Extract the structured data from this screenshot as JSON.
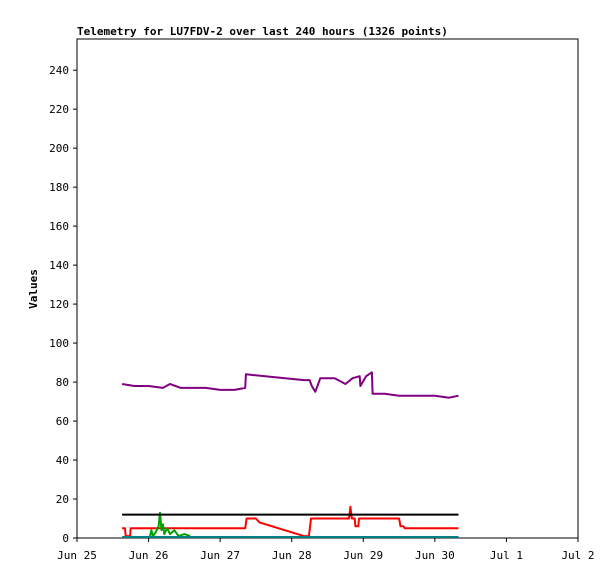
{
  "chart_data": {
    "type": "line",
    "title": "Telemetry for LU7FDV-2 over last 240 hours (1326 points)",
    "xlabel": "",
    "ylabel": "Values",
    "x_ticks": [
      "Jun 25",
      "Jun 26",
      "Jun 27",
      "Jun 28",
      "Jun 29",
      "Jun 30",
      "Jul 1",
      "Jul 2"
    ],
    "x_range_days": [
      0,
      7
    ],
    "y_ticks": [
      0,
      20,
      40,
      60,
      80,
      100,
      120,
      140,
      160,
      180,
      200,
      220,
      240
    ],
    "ylim": [
      0,
      256
    ],
    "grid": false,
    "legend": "none",
    "series": [
      {
        "color": "#800080",
        "points": [
          [
            0.63,
            79
          ],
          [
            0.8,
            78
          ],
          [
            1.0,
            78
          ],
          [
            1.2,
            77
          ],
          [
            1.3,
            79
          ],
          [
            1.45,
            77
          ],
          [
            1.6,
            77
          ],
          [
            1.8,
            77
          ],
          [
            2.0,
            76
          ],
          [
            2.2,
            76
          ],
          [
            2.35,
            77
          ],
          [
            2.36,
            84
          ],
          [
            3.17,
            81
          ],
          [
            3.25,
            81
          ],
          [
            3.28,
            78
          ],
          [
            3.33,
            75
          ],
          [
            3.4,
            82
          ],
          [
            3.6,
            82
          ],
          [
            3.75,
            79
          ],
          [
            3.85,
            82
          ],
          [
            3.95,
            83
          ],
          [
            3.96,
            78
          ],
          [
            4.04,
            83
          ],
          [
            4.12,
            85
          ],
          [
            4.13,
            74
          ],
          [
            4.3,
            74
          ],
          [
            4.5,
            73
          ],
          [
            4.8,
            73
          ],
          [
            5.0,
            73
          ],
          [
            5.2,
            72
          ],
          [
            5.33,
            73
          ]
        ]
      },
      {
        "color": "#ff0000",
        "points": [
          [
            0.63,
            5
          ],
          [
            0.67,
            5
          ],
          [
            0.68,
            1
          ],
          [
            0.74,
            1
          ],
          [
            0.75,
            5
          ],
          [
            1.2,
            5
          ],
          [
            1.6,
            5
          ],
          [
            1.95,
            5
          ],
          [
            2.35,
            5
          ],
          [
            2.37,
            10
          ],
          [
            2.5,
            10
          ],
          [
            2.55,
            8
          ],
          [
            3.17,
            1
          ],
          [
            3.24,
            1
          ],
          [
            3.27,
            10
          ],
          [
            3.6,
            10
          ],
          [
            3.8,
            10
          ],
          [
            3.82,
            16
          ],
          [
            3.84,
            10
          ],
          [
            3.88,
            10
          ],
          [
            3.89,
            6
          ],
          [
            3.93,
            6
          ],
          [
            3.94,
            10
          ],
          [
            4.3,
            10
          ],
          [
            4.5,
            10
          ],
          [
            4.52,
            6
          ],
          [
            4.56,
            6
          ],
          [
            4.58,
            5
          ],
          [
            5.0,
            5
          ],
          [
            5.33,
            5
          ]
        ]
      },
      {
        "color": "#00a000",
        "points": [
          [
            1.02,
            1
          ],
          [
            1.04,
            4
          ],
          [
            1.06,
            1
          ],
          [
            1.1,
            3
          ],
          [
            1.14,
            6
          ],
          [
            1.16,
            13
          ],
          [
            1.18,
            4
          ],
          [
            1.2,
            7
          ],
          [
            1.22,
            2
          ],
          [
            1.26,
            5
          ],
          [
            1.3,
            2
          ],
          [
            1.36,
            4
          ],
          [
            1.42,
            1
          ],
          [
            1.5,
            2
          ],
          [
            1.58,
            1
          ]
        ]
      },
      {
        "color": "#008080",
        "points": [
          [
            0.63,
            0.5
          ],
          [
            1.5,
            0.5
          ],
          [
            2.5,
            0.5
          ],
          [
            3.2,
            0.5
          ],
          [
            4.2,
            0.5
          ],
          [
            5.33,
            0.5
          ]
        ]
      },
      {
        "color": "#000000",
        "points": [
          [
            0.63,
            12
          ],
          [
            5.33,
            12
          ]
        ]
      }
    ]
  }
}
